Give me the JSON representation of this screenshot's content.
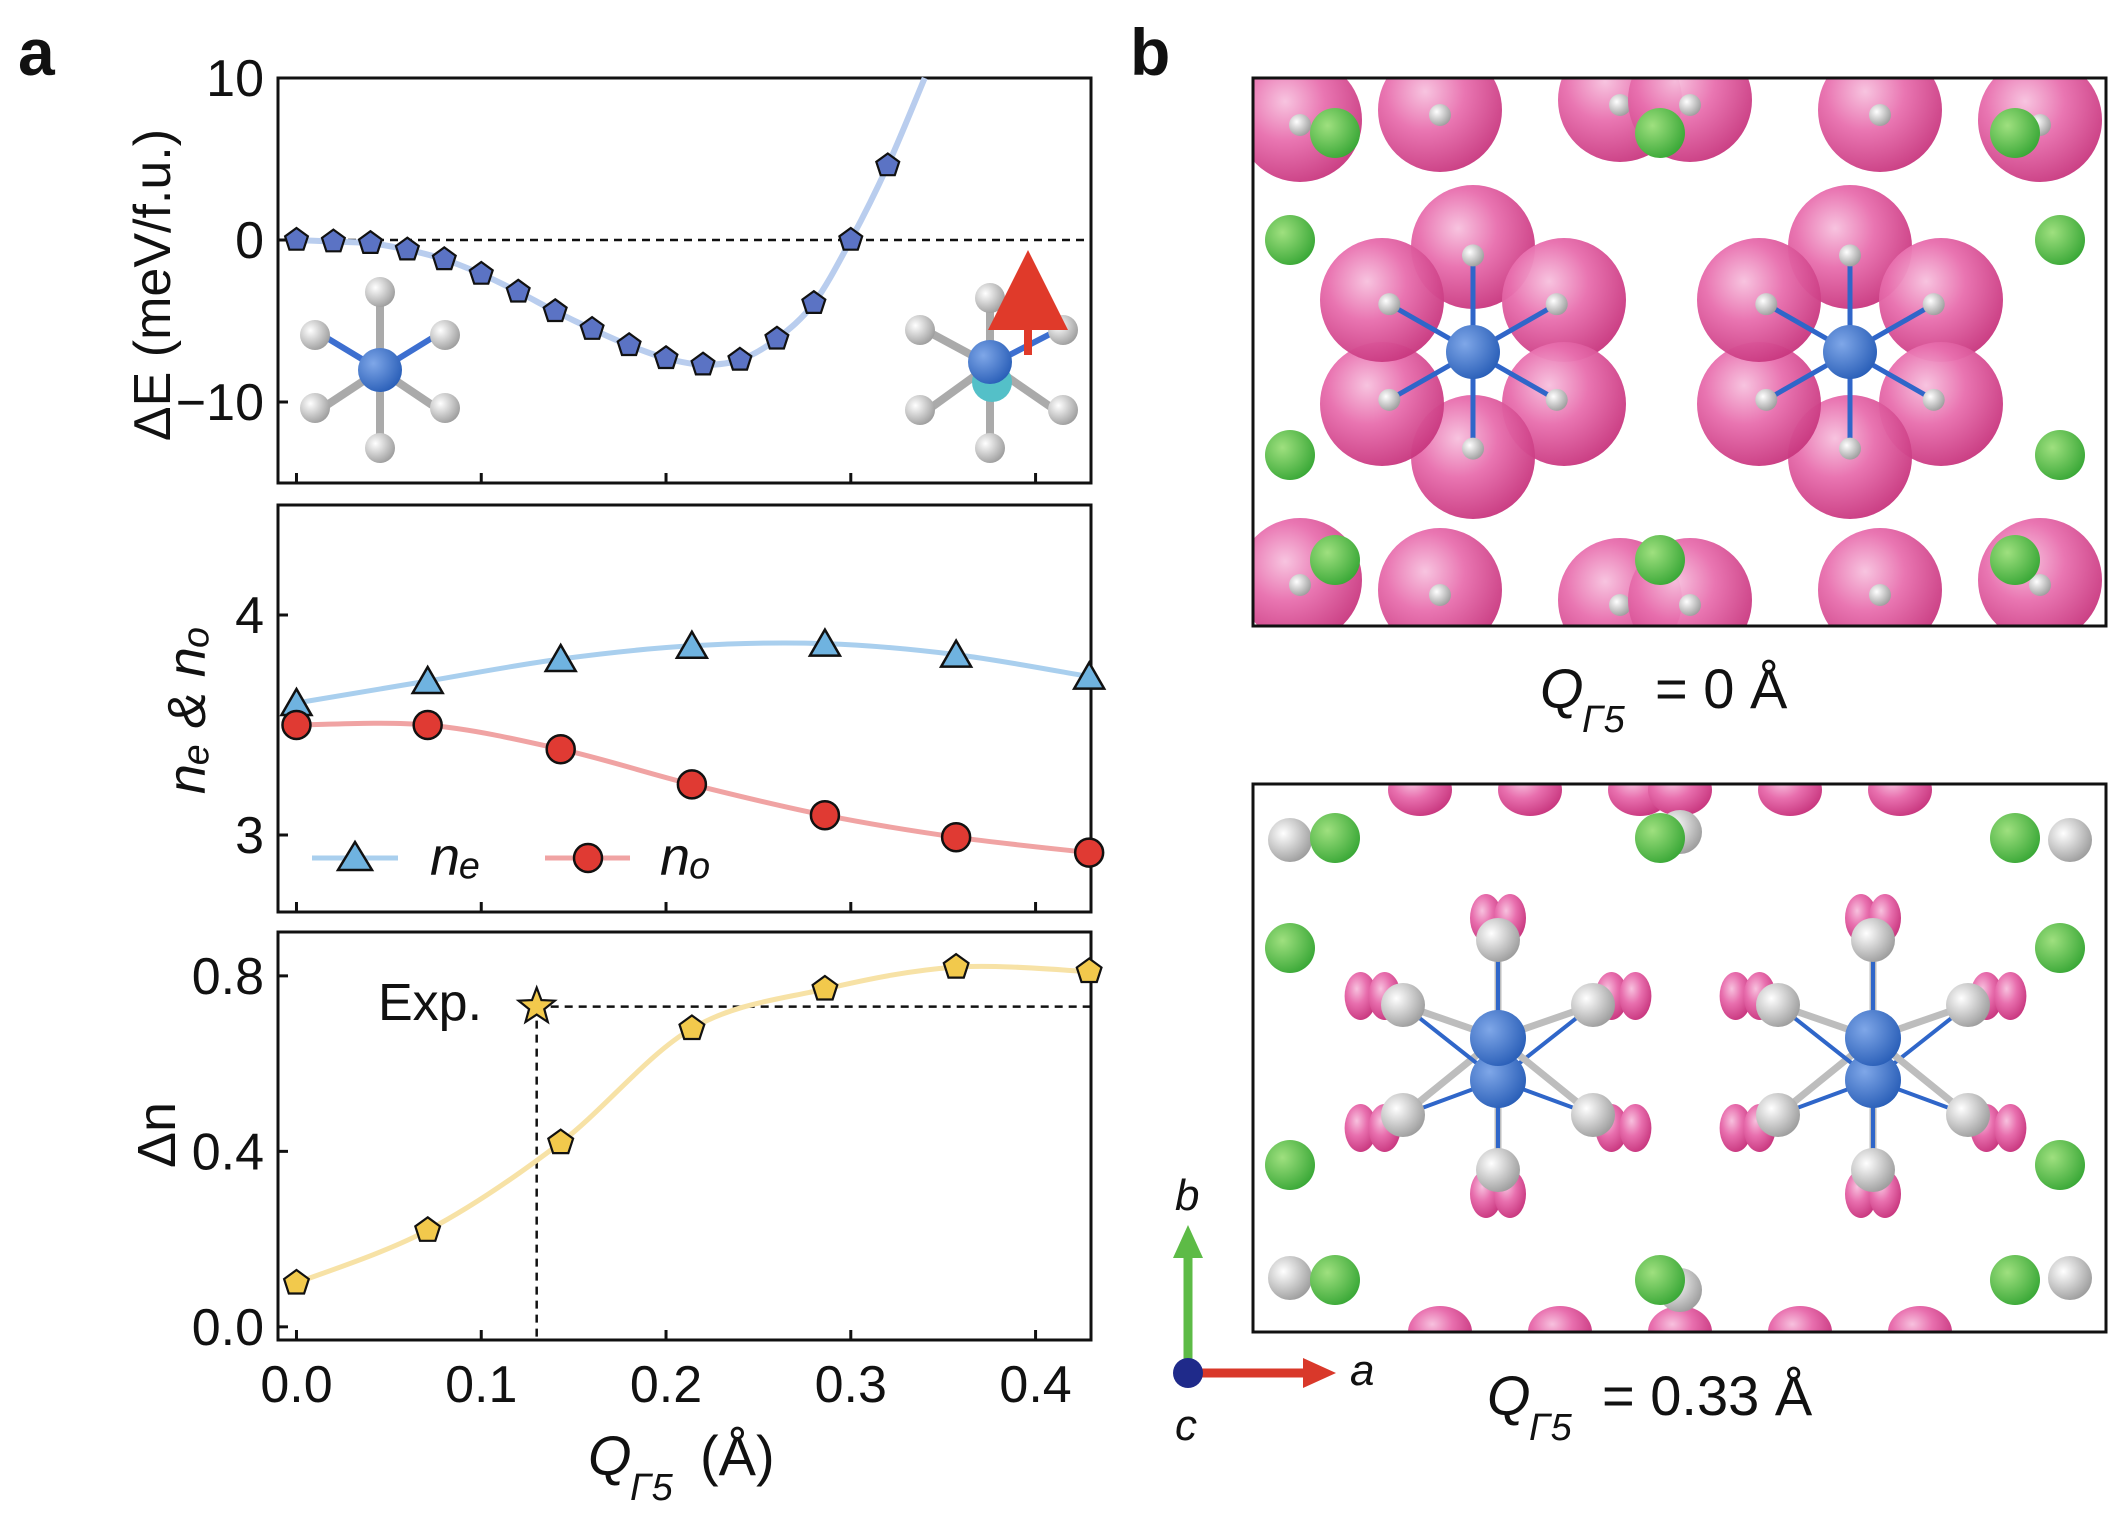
{
  "panel_labels": {
    "a": "a",
    "b": "b"
  },
  "axis": {
    "xlabel_main": "Q",
    "xlabel_sub": "Γ5",
    "xlabel_unit": "(Å)",
    "ylabel_top": "ΔE (meV/f.u.)",
    "ylabel_mid": "nₑ & nₒ",
    "ylabel_bot": "Δn"
  },
  "chart_data": [
    {
      "type": "line",
      "panel": "a-top",
      "ylabel": "ΔE (meV/f.u.)",
      "ylim": [
        -15,
        10
      ],
      "yticks": [
        "10",
        "0",
        "−10"
      ],
      "xlim": [
        -0.01,
        0.43
      ],
      "reference_line_y": 0,
      "series": [
        {
          "x": [
            0.0,
            0.02,
            0.04,
            0.06,
            0.08,
            0.1,
            0.12,
            0.14,
            0.16,
            0.18,
            0.2,
            0.22,
            0.24,
            0.26,
            0.28,
            0.3,
            0.32,
            0.34
          ],
          "y": [
            0.0,
            -0.1,
            -0.2,
            -0.6,
            -1.2,
            -2.1,
            -3.2,
            -4.4,
            -5.5,
            -6.5,
            -7.3,
            -7.7,
            -7.4,
            -6.1,
            -3.9,
            0.0,
            4.6,
            10.0
          ],
          "shown_points": 17,
          "color": "#5b73c4"
        }
      ],
      "insets": [
        "undistorted octahedron",
        "distorted octahedron with red arrow"
      ]
    },
    {
      "type": "line",
      "panel": "a-mid",
      "ylabel": "nₑ & nₒ",
      "ylim": [
        2.65,
        4.5
      ],
      "yticks": [
        "4",
        "3"
      ],
      "series": [
        {
          "name": "nₑ",
          "x": [
            0.0,
            0.071,
            0.143,
            0.214,
            0.286,
            0.357,
            0.429
          ],
          "y": [
            3.6,
            3.7,
            3.8,
            3.86,
            3.87,
            3.82,
            3.72
          ],
          "color": "#6fb3e0"
        },
        {
          "name": "nₒ",
          "x": [
            0.0,
            0.071,
            0.143,
            0.214,
            0.286,
            0.357,
            0.429
          ],
          "y": [
            3.5,
            3.5,
            3.39,
            3.23,
            3.09,
            2.99,
            2.92
          ],
          "color": "#e03a33"
        }
      ],
      "legend": [
        "nₑ",
        "nₒ"
      ]
    },
    {
      "type": "line",
      "panel": "a-bot",
      "ylabel": "Δn",
      "ylim": [
        -0.03,
        0.9
      ],
      "yticks": [
        "0.8",
        "0.4",
        "0.0"
      ],
      "xticks": [
        "0.0",
        "0.1",
        "0.2",
        "0.3",
        "0.4"
      ],
      "series": [
        {
          "x": [
            0.0,
            0.071,
            0.143,
            0.214,
            0.286,
            0.357,
            0.429
          ],
          "y": [
            0.1,
            0.22,
            0.42,
            0.68,
            0.77,
            0.82,
            0.81
          ],
          "color": "#f2c94c"
        }
      ],
      "experiment": {
        "label": "Exp.",
        "x": 0.13,
        "y": 0.73
      }
    }
  ],
  "panel_b": {
    "top_caption_main": "Q",
    "top_caption_sub": "Γ5",
    "top_caption_value": "= 0 Å",
    "bottom_caption_main": "Q",
    "bottom_caption_sub": "Γ5",
    "bottom_caption_value": "= 0.33 Å",
    "axes": {
      "a": "a",
      "b": "b",
      "c": "c"
    }
  }
}
